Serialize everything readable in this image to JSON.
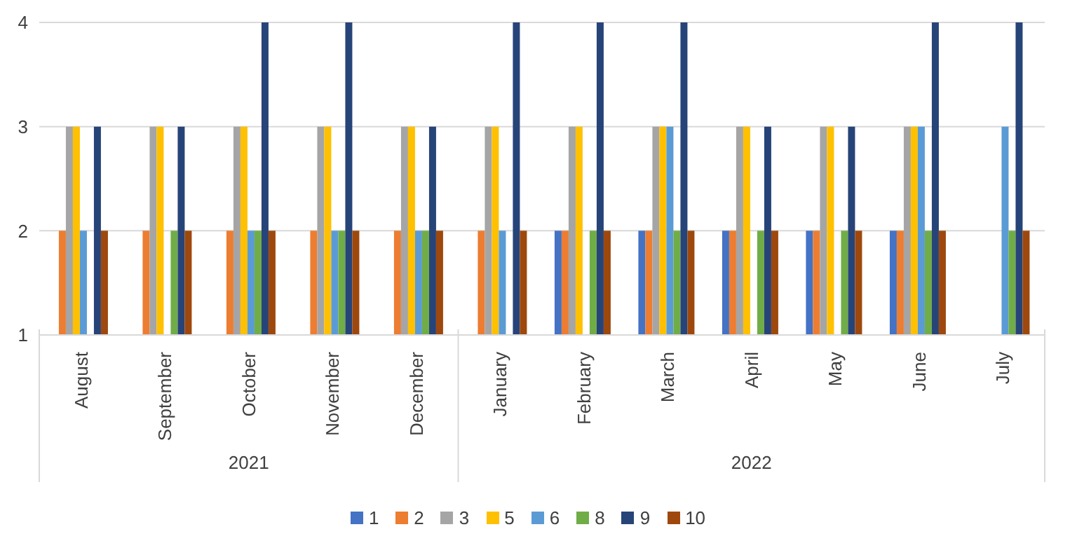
{
  "chart_data": {
    "type": "bar",
    "categories": [
      "August",
      "September",
      "October",
      "November",
      "December",
      "January",
      "February",
      "March",
      "April",
      "May",
      "June",
      "July"
    ],
    "series": [
      {
        "name": "1",
        "color": "#4472c4",
        "values": [
          null,
          null,
          null,
          null,
          null,
          null,
          2,
          2,
          2,
          2,
          2,
          null
        ]
      },
      {
        "name": "2",
        "color": "#ed7d31",
        "values": [
          2,
          2,
          2,
          2,
          2,
          2,
          2,
          2,
          2,
          2,
          2,
          null
        ]
      },
      {
        "name": "3",
        "color": "#a5a5a5",
        "values": [
          3,
          3,
          3,
          3,
          3,
          3,
          3,
          3,
          3,
          3,
          3,
          null
        ]
      },
      {
        "name": "5",
        "color": "#ffc000",
        "values": [
          3,
          3,
          3,
          3,
          3,
          3,
          3,
          3,
          3,
          3,
          3,
          null
        ]
      },
      {
        "name": "6",
        "color": "#5b9bd5",
        "values": [
          2,
          null,
          2,
          2,
          2,
          2,
          null,
          3,
          null,
          null,
          3,
          3
        ]
      },
      {
        "name": "8",
        "color": "#70ad47",
        "values": [
          null,
          2,
          2,
          2,
          2,
          null,
          2,
          2,
          2,
          2,
          2,
          2
        ]
      },
      {
        "name": "9",
        "color": "#264478",
        "values": [
          3,
          3,
          4,
          4,
          3,
          4,
          4,
          4,
          3,
          3,
          4,
          4
        ]
      },
      {
        "name": "10",
        "color": "#9e480e",
        "values": [
          2,
          2,
          2,
          2,
          2,
          2,
          2,
          2,
          2,
          2,
          2,
          2
        ]
      }
    ],
    "ylim": [
      1,
      4
    ],
    "yticks": [
      1,
      2,
      3,
      4
    ],
    "grid": "y",
    "legend": "bottom",
    "annotations": [
      "2021",
      "2022"
    ]
  }
}
